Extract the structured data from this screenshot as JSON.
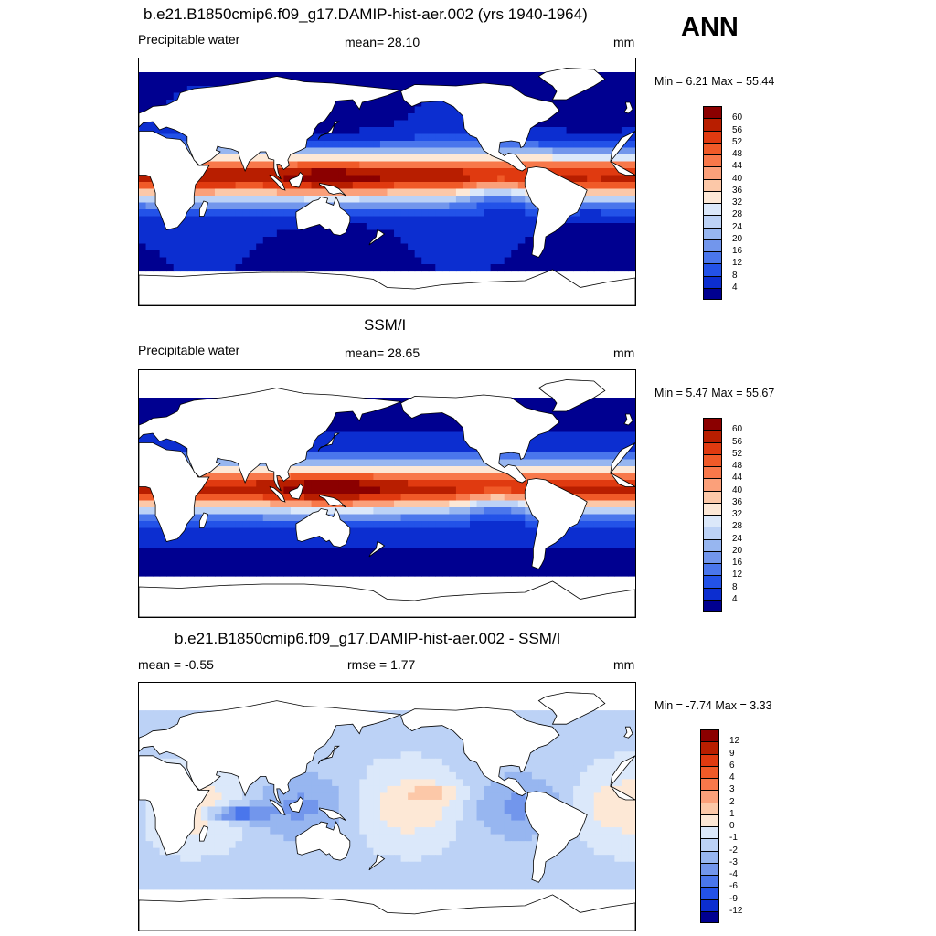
{
  "season": "ANN",
  "panels": [
    {
      "id": "model",
      "title": "b.e21.B1850cmip6.f09_g17.DAMIP-hist-aer.002 (yrs 1940-1964)",
      "left_label": "Precipitable water",
      "center_label": "mean=  28.10",
      "right_label": "mm",
      "minmax": "Min =   6.21 Max =  55.44",
      "palette": "abs",
      "field": "model",
      "mask": false,
      "colorbar_labels": [
        "60",
        "56",
        "52",
        "48",
        "44",
        "40",
        "36",
        "32",
        "28",
        "24",
        "20",
        "16",
        "12",
        "8",
        "4"
      ]
    },
    {
      "id": "obs",
      "title": "SSM/I",
      "left_label": "Precipitable water",
      "center_label": "mean=  28.65",
      "right_label": "mm",
      "minmax": "Min =   5.47 Max =  55.67",
      "palette": "abs",
      "field": "obs",
      "mask": true,
      "colorbar_labels": [
        "60",
        "56",
        "52",
        "48",
        "44",
        "40",
        "36",
        "32",
        "28",
        "24",
        "20",
        "16",
        "12",
        "8",
        "4"
      ]
    },
    {
      "id": "diff",
      "title": "b.e21.B1850cmip6.f09_g17.DAMIP-hist-aer.002 - SSM/I",
      "left_label": "mean =  -0.55",
      "center_label": "rmse =   1.77",
      "right_label": "mm",
      "minmax": "Min =  -7.74 Max =   3.33",
      "palette": "diff",
      "field": "diff",
      "mask": true,
      "colorbar_labels": [
        "12",
        "9",
        "6",
        "4",
        "3",
        "2",
        "1",
        "0",
        "-1",
        "-2",
        "-3",
        "-4",
        "-6",
        "-9",
        "-12"
      ]
    }
  ],
  "colors": {
    "abs": [
      "#8b0000",
      "#b81e00",
      "#e03a10",
      "#f05a28",
      "#f8784a",
      "#fba07a",
      "#fcc8a8",
      "#fde8d6",
      "#dbe8fa",
      "#bcd2f6",
      "#97b6f0",
      "#7296ec",
      "#4a76ec",
      "#2352e8",
      "#0c2ed0",
      "#000090"
    ],
    "diff": [
      "#8b0000",
      "#b81e00",
      "#e03a10",
      "#f05a28",
      "#f8784a",
      "#fba07a",
      "#fcc8a8",
      "#fde8d6",
      "#dbe8fa",
      "#bcd2f6",
      "#97b6f0",
      "#7296ec",
      "#4a76ec",
      "#2352e8",
      "#0c2ed0",
      "#000090"
    ],
    "land": "#ffffff",
    "coast": "#000000"
  }
}
